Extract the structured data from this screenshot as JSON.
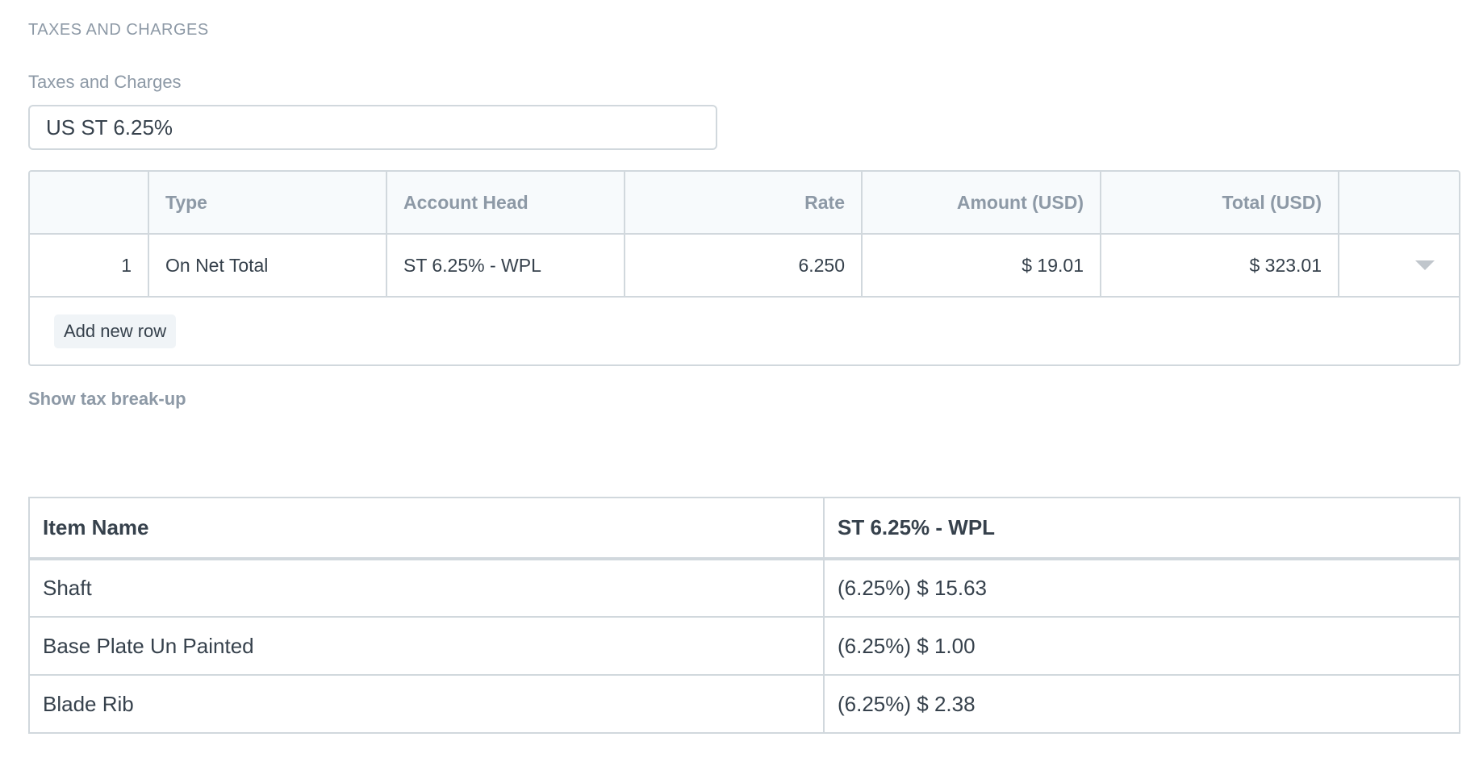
{
  "section_title": "TAXES AND CHARGES",
  "taxes_field": {
    "label": "Taxes and Charges",
    "value": "US ST 6.25%"
  },
  "tax_grid": {
    "columns": [
      "",
      "Type",
      "Account Head",
      "Rate",
      "Amount (USD)",
      "Total (USD)",
      ""
    ],
    "rows": [
      {
        "idx": "1",
        "type": "On Net Total",
        "account_head": "ST 6.25% - WPL",
        "rate": "6.250",
        "amount": "$ 19.01",
        "total": "$ 323.01"
      }
    ],
    "add_row_label": "Add new row"
  },
  "show_breakup_label": "Show tax break-up",
  "breakup_table": {
    "columns": [
      "Item Name",
      "ST 6.25% - WPL"
    ],
    "rows": [
      [
        "Shaft",
        "(6.25%) $ 15.63"
      ],
      [
        "Base Plate Un Painted",
        "(6.25%) $ 1.00"
      ],
      [
        "Blade Rib",
        "(6.25%) $ 2.38"
      ]
    ]
  },
  "colors": {
    "muted_text": "#8d99a6",
    "text": "#36414c",
    "border": "#d1d8dd",
    "header_bg": "#f7fafc"
  }
}
